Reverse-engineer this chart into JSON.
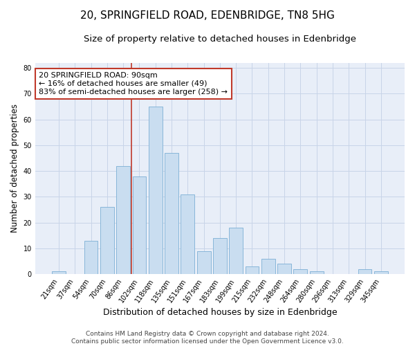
{
  "title": "20, SPRINGFIELD ROAD, EDENBRIDGE, TN8 5HG",
  "subtitle": "Size of property relative to detached houses in Edenbridge",
  "xlabel": "Distribution of detached houses by size in Edenbridge",
  "ylabel": "Number of detached properties",
  "categories": [
    "21sqm",
    "37sqm",
    "54sqm",
    "70sqm",
    "86sqm",
    "102sqm",
    "118sqm",
    "135sqm",
    "151sqm",
    "167sqm",
    "183sqm",
    "199sqm",
    "215sqm",
    "232sqm",
    "248sqm",
    "264sqm",
    "280sqm",
    "296sqm",
    "313sqm",
    "329sqm",
    "345sqm"
  ],
  "values": [
    1,
    0,
    13,
    26,
    42,
    38,
    65,
    47,
    31,
    9,
    14,
    18,
    3,
    6,
    4,
    2,
    1,
    0,
    0,
    2,
    1
  ],
  "bar_color": "#c9ddf0",
  "bar_edge_color": "#7bafd4",
  "bar_width": 0.85,
  "vline_x": 4.5,
  "vline_color": "#c0392b",
  "annotation_text": "20 SPRINGFIELD ROAD: 90sqm\n← 16% of detached houses are smaller (49)\n83% of semi-detached houses are larger (258) →",
  "annotation_box_color": "white",
  "annotation_box_edge_color": "#c0392b",
  "ylim": [
    0,
    82
  ],
  "yticks": [
    0,
    10,
    20,
    30,
    40,
    50,
    60,
    70,
    80
  ],
  "grid_color": "#c8d4e8",
  "background_color": "#e8eef8",
  "footer_text": "Contains HM Land Registry data © Crown copyright and database right 2024.\nContains public sector information licensed under the Open Government Licence v3.0.",
  "title_fontsize": 11,
  "subtitle_fontsize": 9.5,
  "xlabel_fontsize": 9,
  "ylabel_fontsize": 8.5,
  "tick_fontsize": 7,
  "annotation_fontsize": 8,
  "footer_fontsize": 6.5
}
